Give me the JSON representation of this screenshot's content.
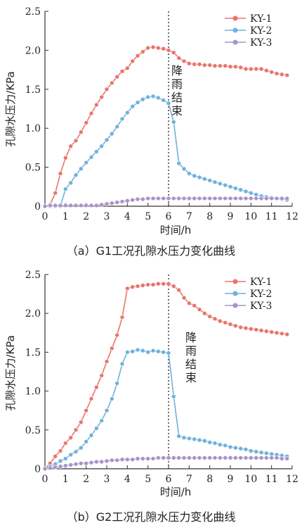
{
  "chart_data": [
    {
      "type": "line",
      "caption": "（a）G1工况孔隙水压力变化曲线",
      "xlabel": "时间/h",
      "ylabel": "孔隙水压力/KPa",
      "xlim": [
        0,
        12
      ],
      "ylim": [
        0,
        2.5
      ],
      "xticks": [
        0,
        1,
        2,
        3,
        4,
        5,
        6,
        7,
        8,
        9,
        10,
        11,
        12
      ],
      "yticks": [
        0,
        0.5,
        1.0,
        1.5,
        2.0,
        2.5
      ],
      "ytick_labels": [
        "0",
        "0.5",
        "1.0",
        "1.5",
        "2.0",
        "2.5"
      ],
      "vline": 6,
      "annotation": [
        "降",
        "雨",
        "结",
        "束"
      ],
      "legend_position": "top-right",
      "series": [
        {
          "name": "KY-1",
          "color": "#e8756b",
          "x": [
            0,
            0.25,
            0.5,
            0.75,
            1,
            1.25,
            1.5,
            1.75,
            2,
            2.25,
            2.5,
            2.75,
            3,
            3.25,
            3.5,
            3.75,
            4,
            4.25,
            4.5,
            4.75,
            5,
            5.25,
            5.5,
            5.75,
            6,
            6.25,
            6.5,
            6.75,
            7,
            7.25,
            7.5,
            7.75,
            8,
            8.25,
            8.5,
            8.75,
            9,
            9.25,
            9.5,
            9.75,
            10,
            10.25,
            10.5,
            10.75,
            11,
            11.25,
            11.5,
            11.75
          ],
          "y": [
            0,
            0.02,
            0.17,
            0.42,
            0.62,
            0.77,
            0.84,
            0.95,
            1.07,
            1.19,
            1.3,
            1.4,
            1.5,
            1.58,
            1.66,
            1.73,
            1.77,
            1.86,
            1.93,
            1.98,
            2.03,
            2.04,
            2.03,
            2.02,
            2.0,
            1.97,
            1.9,
            1.86,
            1.83,
            1.82,
            1.82,
            1.81,
            1.81,
            1.8,
            1.8,
            1.8,
            1.79,
            1.79,
            1.78,
            1.76,
            1.76,
            1.76,
            1.76,
            1.74,
            1.72,
            1.7,
            1.69,
            1.68
          ]
        },
        {
          "name": "KY-2",
          "color": "#6fb1dc",
          "x": [
            0,
            0.25,
            0.5,
            0.75,
            1,
            1.25,
            1.5,
            1.75,
            2,
            2.25,
            2.5,
            2.75,
            3,
            3.25,
            3.5,
            3.75,
            4,
            4.25,
            4.5,
            4.75,
            5,
            5.25,
            5.5,
            5.75,
            6,
            6.25,
            6.5,
            6.75,
            7,
            7.25,
            7.5,
            7.75,
            8,
            8.25,
            8.5,
            8.75,
            9,
            9.25,
            9.5,
            9.75,
            10,
            10.25,
            10.5,
            10.75,
            11,
            11.25,
            11.5,
            11.75
          ],
          "y": [
            0,
            0,
            0,
            0,
            0.22,
            0.3,
            0.4,
            0.48,
            0.56,
            0.63,
            0.7,
            0.77,
            0.85,
            0.93,
            1.02,
            1.12,
            1.2,
            1.28,
            1.33,
            1.37,
            1.4,
            1.41,
            1.39,
            1.36,
            1.32,
            1.08,
            0.55,
            0.48,
            0.42,
            0.39,
            0.37,
            0.35,
            0.33,
            0.31,
            0.29,
            0.27,
            0.25,
            0.23,
            0.21,
            0.19,
            0.17,
            0.15,
            0.13,
            0.12,
            0.11,
            0.1,
            0.09,
            0.08
          ]
        },
        {
          "name": "KY-3",
          "color": "#a893c9",
          "x": [
            0,
            0.25,
            0.5,
            0.75,
            1,
            1.25,
            1.5,
            1.75,
            2,
            2.25,
            2.5,
            2.75,
            3,
            3.25,
            3.5,
            3.75,
            4,
            4.25,
            4.5,
            4.75,
            5,
            5.25,
            5.5,
            5.75,
            6,
            6.25,
            6.5,
            6.75,
            7,
            7.25,
            7.5,
            7.75,
            8,
            8.25,
            8.5,
            8.75,
            9,
            9.25,
            9.5,
            9.75,
            10,
            10.25,
            10.5,
            10.75,
            11,
            11.25,
            11.5,
            11.75
          ],
          "y": [
            0,
            0.01,
            0.01,
            0.01,
            0.01,
            0.01,
            0.01,
            0.01,
            0.01,
            0.01,
            0.01,
            0.02,
            0.03,
            0.04,
            0.05,
            0.06,
            0.07,
            0.08,
            0.09,
            0.09,
            0.1,
            0.1,
            0.1,
            0.1,
            0.1,
            0.1,
            0.1,
            0.1,
            0.1,
            0.1,
            0.1,
            0.1,
            0.1,
            0.1,
            0.1,
            0.1,
            0.1,
            0.1,
            0.1,
            0.1,
            0.1,
            0.1,
            0.1,
            0.1,
            0.1,
            0.1,
            0.1,
            0.1
          ]
        }
      ]
    },
    {
      "type": "line",
      "caption": "（b）G2工况孔隙水压力变化曲线",
      "xlabel": "时间/h",
      "ylabel": "孔隙水压力/KPa",
      "xlim": [
        0,
        12
      ],
      "ylim": [
        0,
        2.5
      ],
      "xticks": [
        0,
        1,
        2,
        3,
        4,
        5,
        6,
        7,
        8,
        9,
        10,
        11,
        12
      ],
      "yticks": [
        0,
        0.5,
        1.0,
        1.5,
        2.0,
        2.5
      ],
      "ytick_labels": [
        "0",
        "0.5",
        "1.0",
        "1.5",
        "2.0",
        "2.5"
      ],
      "vline": 6,
      "annotation": [
        "降",
        "雨",
        "结",
        "束"
      ],
      "legend_position": "top-right",
      "series": [
        {
          "name": "KY-1",
          "color": "#e8756b",
          "x": [
            0,
            0.25,
            0.5,
            0.75,
            1,
            1.25,
            1.5,
            1.75,
            2,
            2.25,
            2.5,
            2.75,
            3,
            3.25,
            3.5,
            3.75,
            4,
            4.25,
            4.5,
            4.75,
            5,
            5.25,
            5.5,
            5.75,
            6,
            6.25,
            6.5,
            6.75,
            7,
            7.25,
            7.5,
            7.75,
            8,
            8.25,
            8.5,
            8.75,
            9,
            9.25,
            9.5,
            9.75,
            10,
            10.25,
            10.5,
            10.75,
            11,
            11.25,
            11.5,
            11.75
          ],
          "y": [
            0,
            0.07,
            0.16,
            0.23,
            0.33,
            0.4,
            0.5,
            0.6,
            0.75,
            0.9,
            1.05,
            1.2,
            1.38,
            1.55,
            1.72,
            1.95,
            2.32,
            2.34,
            2.35,
            2.36,
            2.37,
            2.37,
            2.38,
            2.38,
            2.38,
            2.35,
            2.3,
            2.2,
            2.13,
            2.1,
            2.05,
            2.0,
            1.96,
            1.93,
            1.9,
            1.88,
            1.86,
            1.84,
            1.82,
            1.81,
            1.8,
            1.79,
            1.78,
            1.77,
            1.76,
            1.75,
            1.74,
            1.73
          ]
        },
        {
          "name": "KY-2",
          "color": "#6fb1dc",
          "x": [
            0,
            0.25,
            0.5,
            0.75,
            1,
            1.25,
            1.5,
            1.75,
            2,
            2.25,
            2.5,
            2.75,
            3,
            3.25,
            3.5,
            3.75,
            4,
            4.25,
            4.5,
            4.75,
            5,
            5.25,
            5.5,
            5.75,
            6,
            6.25,
            6.5,
            6.75,
            7,
            7.25,
            7.5,
            7.75,
            8,
            8.25,
            8.5,
            8.75,
            9,
            9.25,
            9.5,
            9.75,
            10,
            10.25,
            10.5,
            10.75,
            11,
            11.25,
            11.5,
            11.75
          ],
          "y": [
            0,
            0.03,
            0.06,
            0.1,
            0.13,
            0.18,
            0.22,
            0.27,
            0.35,
            0.43,
            0.52,
            0.62,
            0.75,
            0.9,
            1.1,
            1.35,
            1.5,
            1.51,
            1.53,
            1.52,
            1.5,
            1.52,
            1.51,
            1.5,
            1.49,
            0.93,
            0.42,
            0.4,
            0.39,
            0.38,
            0.37,
            0.36,
            0.34,
            0.33,
            0.31,
            0.3,
            0.28,
            0.27,
            0.26,
            0.25,
            0.23,
            0.22,
            0.21,
            0.2,
            0.19,
            0.18,
            0.17,
            0.16
          ]
        },
        {
          "name": "KY-3",
          "color": "#a893c9",
          "x": [
            0,
            0.25,
            0.5,
            0.75,
            1,
            1.25,
            1.5,
            1.75,
            2,
            2.25,
            2.5,
            2.75,
            3,
            3.25,
            3.5,
            3.75,
            4,
            4.25,
            4.5,
            4.75,
            5,
            5.25,
            5.5,
            5.75,
            6,
            6.25,
            6.5,
            6.75,
            7,
            7.25,
            7.5,
            7.75,
            8,
            8.25,
            8.5,
            8.75,
            9,
            9.25,
            9.5,
            9.75,
            10,
            10.25,
            10.5,
            10.75,
            11,
            11.25,
            11.5,
            11.75
          ],
          "y": [
            0,
            0.01,
            0.02,
            0.03,
            0.04,
            0.05,
            0.06,
            0.07,
            0.07,
            0.08,
            0.09,
            0.09,
            0.1,
            0.11,
            0.11,
            0.12,
            0.12,
            0.12,
            0.13,
            0.13,
            0.13,
            0.13,
            0.14,
            0.14,
            0.14,
            0.14,
            0.14,
            0.14,
            0.14,
            0.14,
            0.14,
            0.14,
            0.14,
            0.14,
            0.14,
            0.14,
            0.14,
            0.14,
            0.14,
            0.14,
            0.14,
            0.14,
            0.14,
            0.14,
            0.14,
            0.14,
            0.13,
            0.13
          ]
        }
      ]
    }
  ]
}
